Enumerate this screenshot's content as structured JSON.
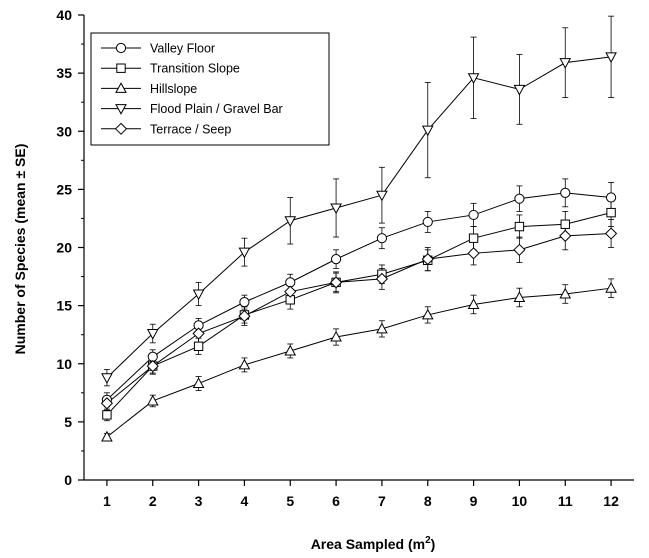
{
  "chart_data": {
    "type": "line",
    "title": "",
    "xlabel": "Area Sampled (m",
    "xlabel_superscript": "2",
    "xlabel_suffix": ")",
    "ylabel": "Number of Species (mean ± SE)",
    "xlim": [
      0.5,
      12.5
    ],
    "ylim": [
      0,
      40
    ],
    "x_ticks": [
      1,
      2,
      3,
      4,
      5,
      6,
      7,
      8,
      9,
      10,
      11,
      12
    ],
    "y_ticks": [
      0,
      5,
      10,
      15,
      20,
      25,
      30,
      35,
      40
    ],
    "grid": false,
    "legend_position": "top-left",
    "x": [
      1,
      2,
      3,
      4,
      5,
      6,
      7,
      8,
      9,
      10,
      11,
      12
    ],
    "series": [
      {
        "name": "Valley Floor",
        "marker": "circle",
        "values": [
          6.9,
          10.6,
          13.3,
          15.3,
          17.0,
          19.0,
          20.8,
          22.2,
          22.8,
          24.2,
          24.7,
          24.3
        ],
        "se": [
          0.6,
          0.6,
          0.6,
          0.6,
          0.7,
          0.8,
          0.9,
          0.9,
          1.0,
          1.1,
          1.2,
          1.3
        ]
      },
      {
        "name": "Transition Slope",
        "marker": "square",
        "values": [
          5.6,
          9.8,
          11.5,
          14.2,
          15.5,
          17.0,
          17.7,
          18.9,
          20.8,
          21.8,
          22.0,
          23.0
        ],
        "se": [
          0.5,
          0.6,
          0.7,
          0.7,
          0.8,
          0.8,
          0.8,
          0.9,
          1.0,
          1.0,
          1.1,
          1.2
        ]
      },
      {
        "name": "Hillslope",
        "marker": "triangle-up",
        "values": [
          3.7,
          6.8,
          8.3,
          9.9,
          11.1,
          12.3,
          13.0,
          14.2,
          15.1,
          15.7,
          16.0,
          16.5
        ],
        "se": [
          0.3,
          0.5,
          0.6,
          0.6,
          0.6,
          0.7,
          0.7,
          0.7,
          0.8,
          0.8,
          0.8,
          0.8
        ]
      },
      {
        "name": "Flood Plain / Gravel Bar",
        "marker": "triangle-down",
        "values": [
          8.8,
          12.6,
          16.0,
          19.6,
          22.3,
          23.4,
          24.5,
          30.1,
          34.6,
          33.6,
          35.9,
          36.4
        ],
        "se": [
          0.7,
          0.8,
          1.0,
          1.2,
          2.0,
          2.5,
          2.4,
          4.1,
          3.5,
          3.0,
          3.0,
          3.5
        ]
      },
      {
        "name": "Terrace / Seep",
        "marker": "diamond",
        "values": [
          6.6,
          9.8,
          12.6,
          14.1,
          16.2,
          17.0,
          17.3,
          19.0,
          19.5,
          19.8,
          21.0,
          21.2
        ],
        "se": [
          0.6,
          0.7,
          0.8,
          0.8,
          0.9,
          0.9,
          0.9,
          1.0,
          1.0,
          1.1,
          1.2,
          1.2
        ]
      }
    ]
  }
}
